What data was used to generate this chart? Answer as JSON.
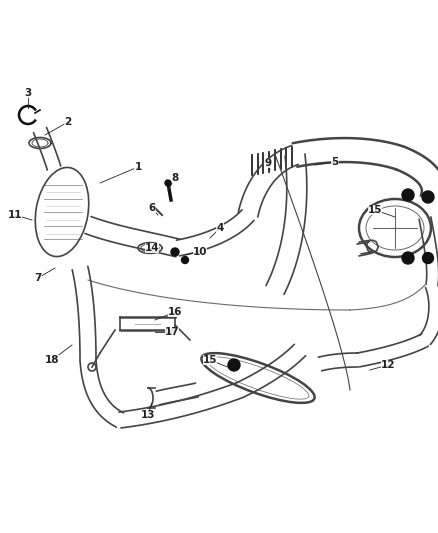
{
  "bg_color": "#ffffff",
  "line_color": "#444444",
  "dark_color": "#111111",
  "label_color": "#222222",
  "figsize": [
    4.38,
    5.33
  ],
  "dpi": 100
}
